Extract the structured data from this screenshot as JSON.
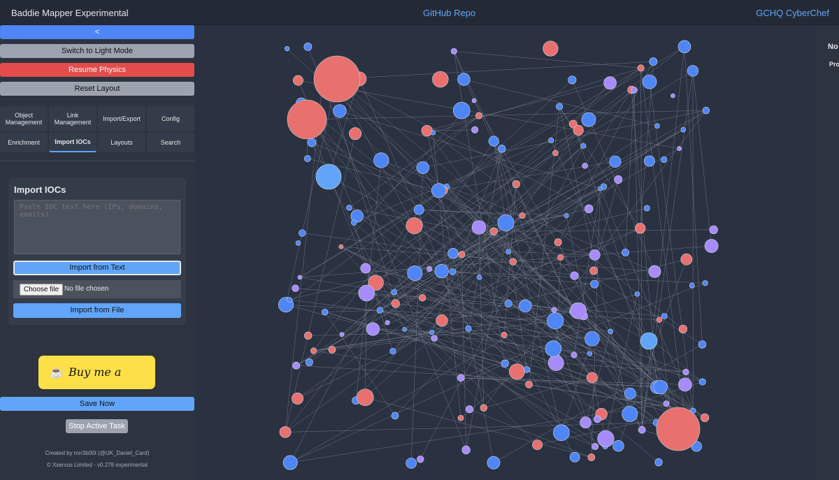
{
  "header": {
    "title": "Baddie Mapper Experimental",
    "github": "GitHub Repo",
    "cyberchef": "GCHQ CyberChef"
  },
  "sidebar": {
    "collapse": "<",
    "light_mode": "Switch to Light Mode",
    "physics": "Resume Physics",
    "reset": "Reset Layout",
    "tabs": [
      "Object Management",
      "Link Management",
      "Import/Export",
      "Config",
      "Enrichment",
      "Import IOCs",
      "Layouts",
      "Search"
    ],
    "panel": {
      "title": "Import IOCs",
      "placeholder": "Paste IOC text here (IPs, domains, emails)",
      "import_text": "Import from Text",
      "choose_file": "Choose file",
      "no_file": "No file chosen",
      "import_file": "Import from File"
    },
    "coffee": "Buy me a coffee",
    "save": "Save Now",
    "stop": "Stop Active Task",
    "footer": [
      "Created by mrr3b00t (@UK_Daniel_Card)",
      "© Xservus Limited - v0.278 experimental"
    ]
  },
  "right_panel": {
    "title": "No",
    "subtitle": "Pro"
  }
}
